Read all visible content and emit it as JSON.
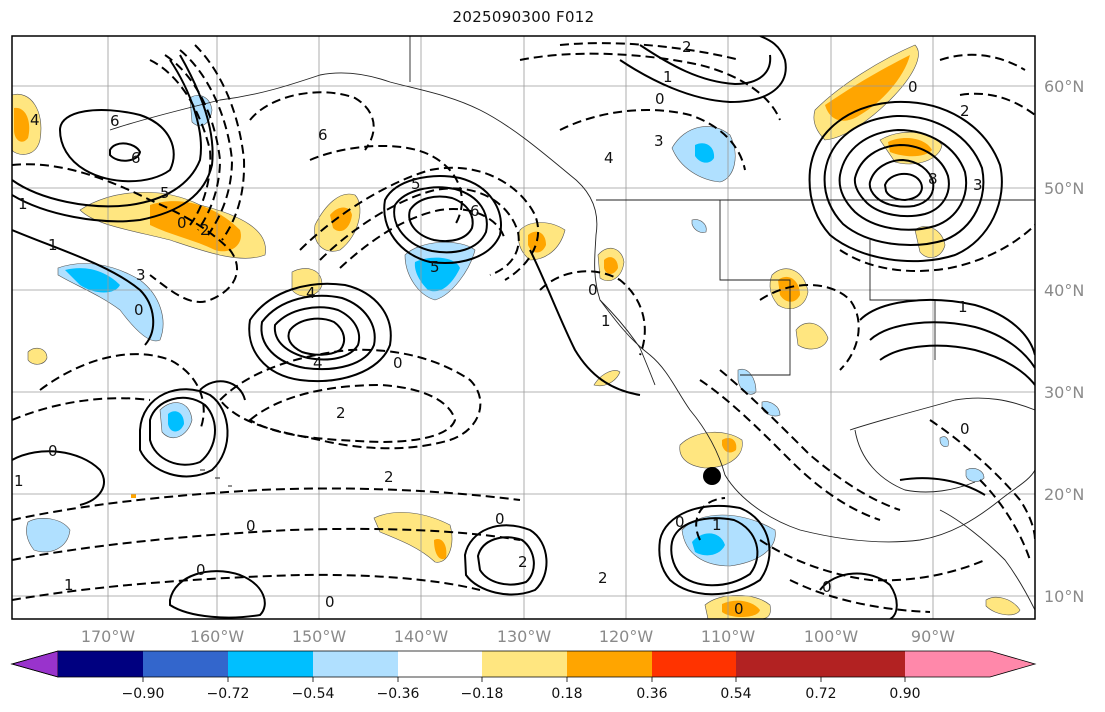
{
  "title": "2025090300 F012",
  "map": {
    "lat_labels": [
      "60°N",
      "50°N",
      "40°N",
      "30°N",
      "20°N",
      "10°N"
    ],
    "lon_labels": [
      "170°W",
      "160°W",
      "150°W",
      "140°W",
      "130°W",
      "120°W",
      "110°W",
      "100°W",
      "90°W"
    ],
    "contour_labels": [
      "6",
      "6",
      "0",
      "2",
      "1",
      "0",
      "3",
      "4",
      "5",
      "0",
      "4",
      "6",
      "0",
      "2",
      "2",
      "1",
      "1",
      "0",
      "0",
      "0",
      "2",
      "3",
      "8",
      "4",
      "0",
      "1",
      "2",
      "2",
      "0",
      "0",
      "1",
      "0",
      "3",
      "0",
      "0",
      "1",
      "1",
      "0",
      "2",
      "6",
      "0",
      "1",
      "4",
      "5",
      "5"
    ]
  },
  "colorbar": {
    "ticks": [
      "−0.90",
      "−0.72",
      "−0.54",
      "−0.36",
      "−0.18",
      "0.18",
      "0.36",
      "0.54",
      "0.72",
      "0.90"
    ],
    "colors": [
      "#9933cc",
      "#000080",
      "#3366cc",
      "#00bfff",
      "#b0e0ff",
      "#ffffff",
      "#ffe680",
      "#ffa500",
      "#ff3300",
      "#b22222",
      "#ff88aa"
    ]
  }
}
